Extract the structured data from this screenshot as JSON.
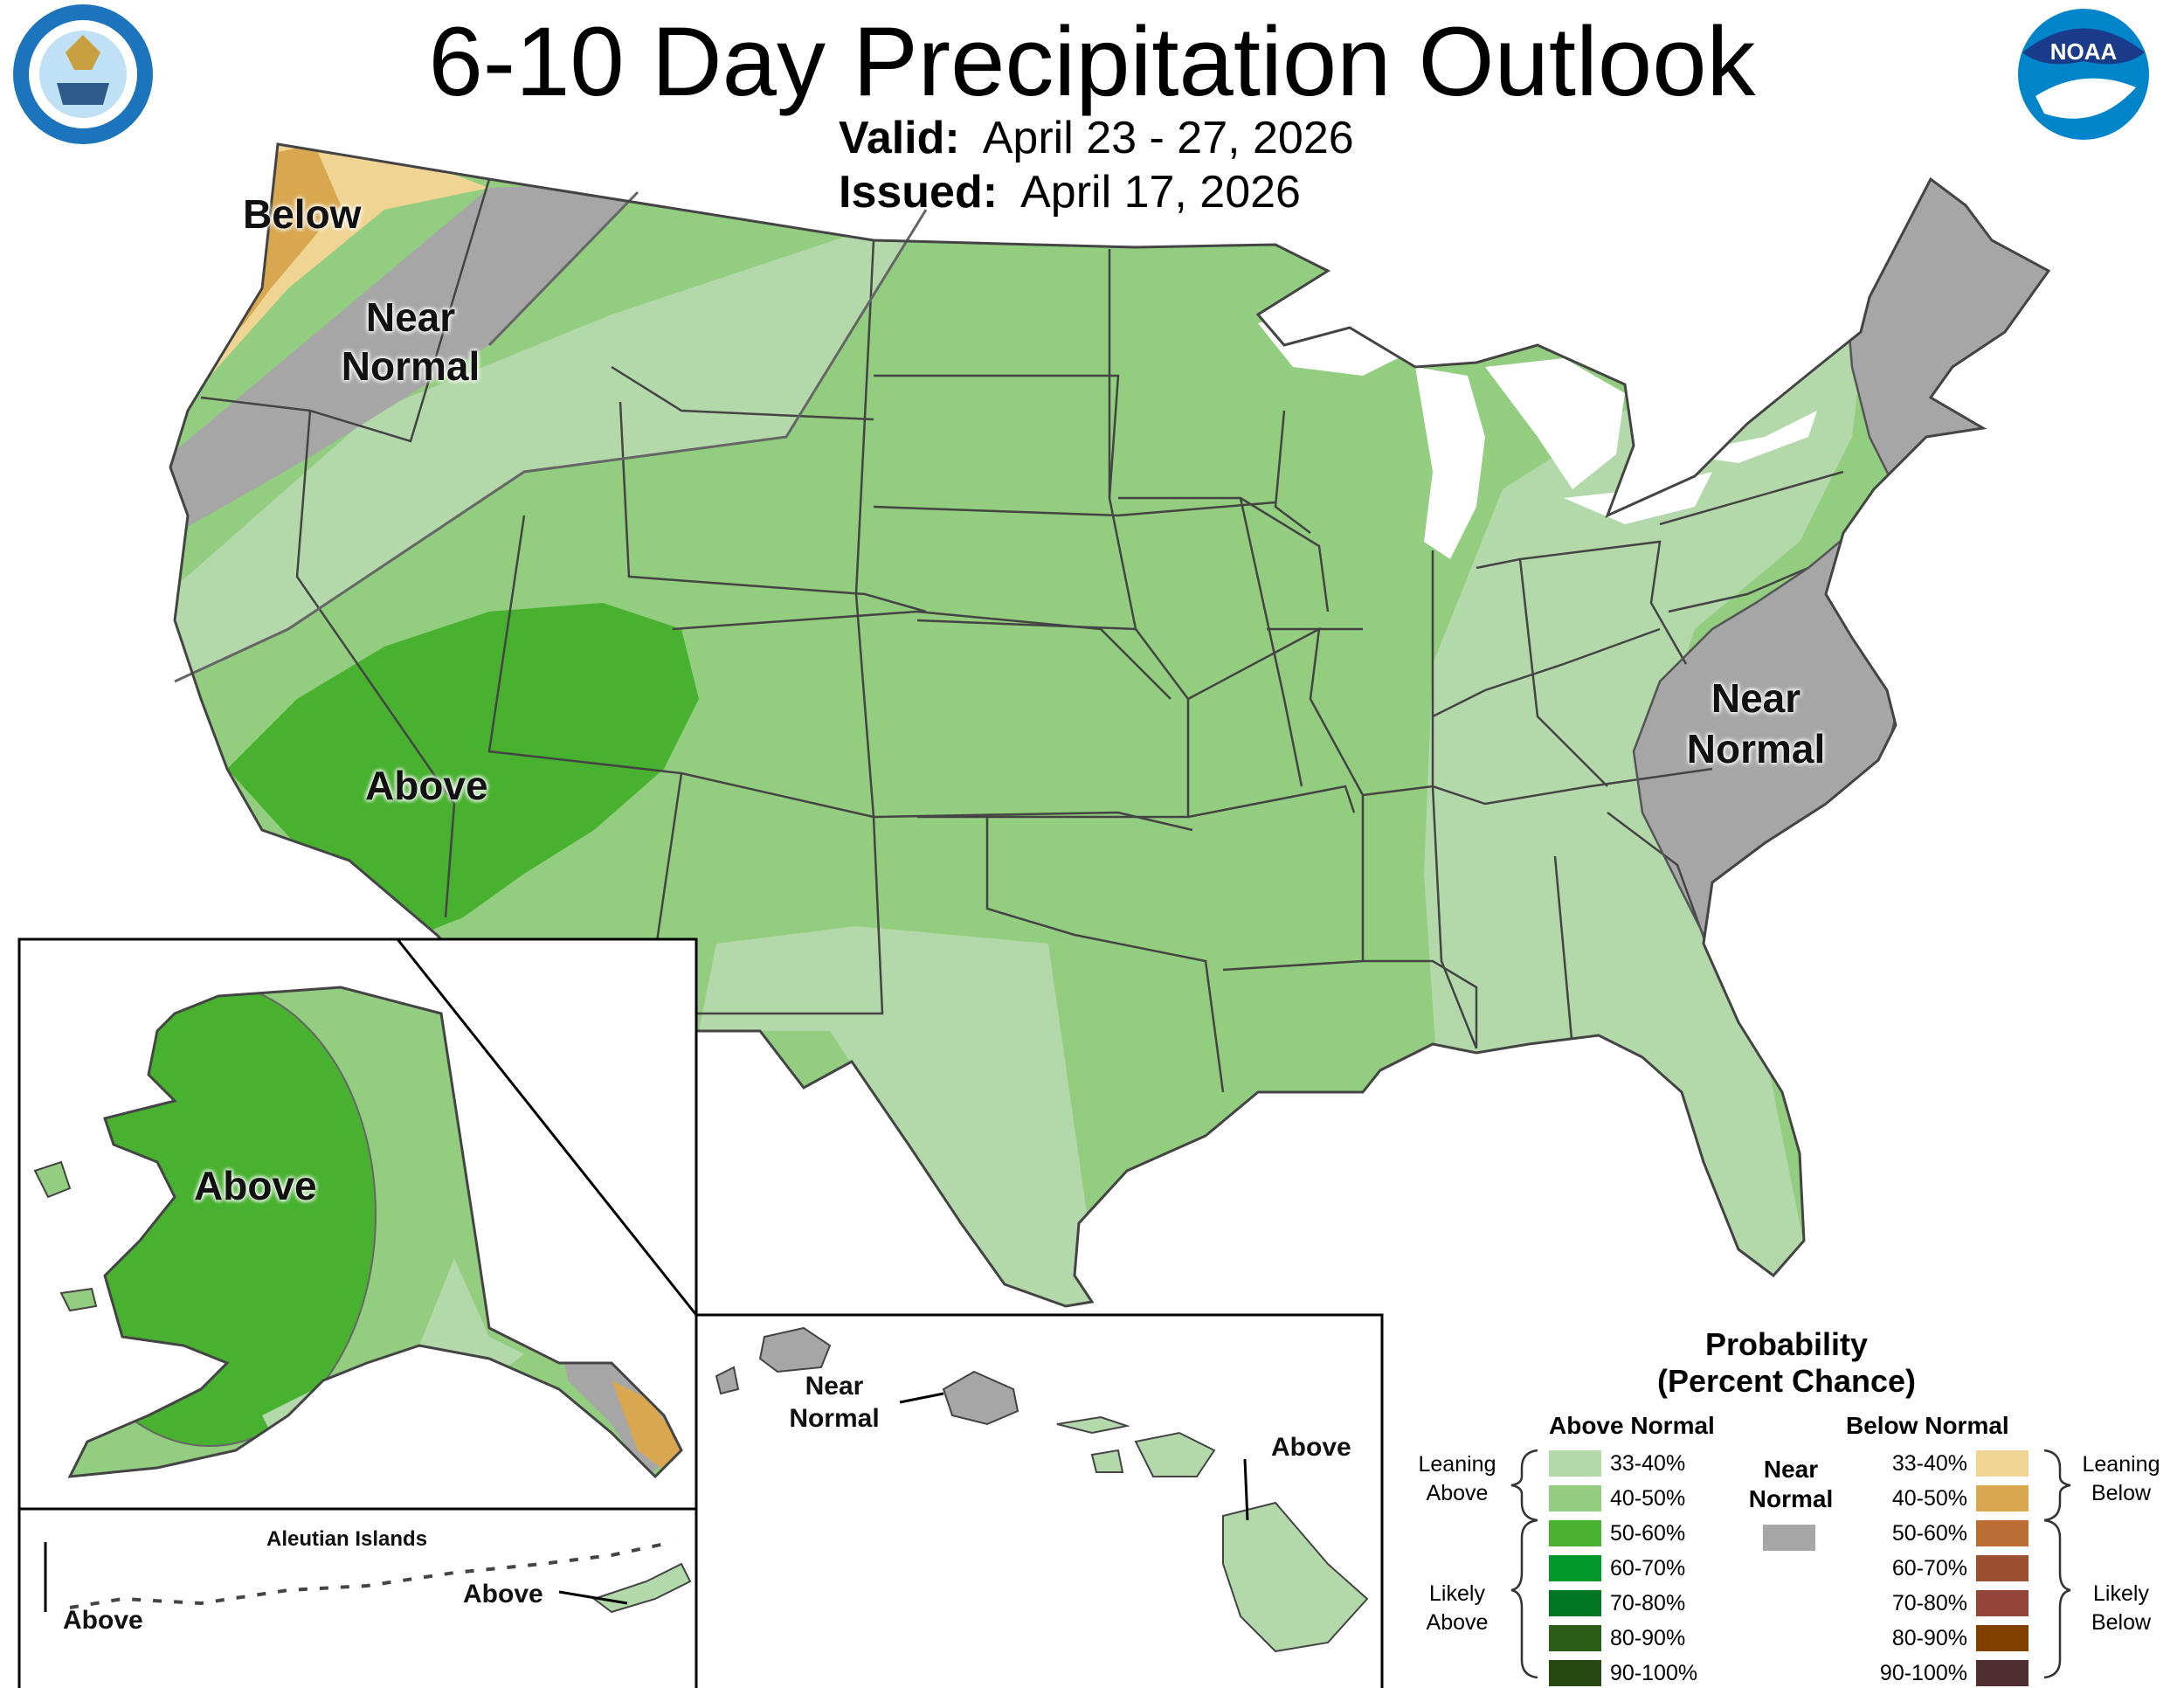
{
  "title": "6-10 Day Precipitation Outlook",
  "valid_label": "Valid:",
  "valid_value": "April 23 - 27, 2026",
  "issued_label": "Issued:",
  "issued_value": "April 17, 2026",
  "logos": {
    "left": "department-of-commerce-seal",
    "right": "noaa-logo"
  },
  "region_labels": {
    "below": "Below",
    "near_normal_nw": "Near\nNormal",
    "above_sw": "Above",
    "near_normal_east": "Near\nNormal",
    "above_alaska": "Above",
    "aleutian_title": "Aleutian Islands",
    "above_aleutian_west": "Above",
    "above_aleutian_east": "Above",
    "near_normal_hawaii": "Near\nNormal",
    "above_hawaii": "Above"
  },
  "legend": {
    "title_line1": "Probability",
    "title_line2": "(Percent Chance)",
    "above_header": "Above Normal",
    "below_header": "Below Normal",
    "near_label": "Near\nNormal",
    "near_color": "#a6a6a6",
    "leaning_above": "Leaning\nAbove",
    "likely_above": "Likely\nAbove",
    "leaning_below": "Leaning\nBelow",
    "likely_below": "Likely\nBelow",
    "above": [
      {
        "range": "33-40%",
        "color": "#b3d9ab"
      },
      {
        "range": "40-50%",
        "color": "#93cd7f"
      },
      {
        "range": "50-60%",
        "color": "#48b130"
      },
      {
        "range": "60-70%",
        "color": "#04982a"
      },
      {
        "range": "70-80%",
        "color": "#027722"
      },
      {
        "range": "80-90%",
        "color": "#2c5e1a"
      },
      {
        "range": "90-100%",
        "color": "#264a12"
      }
    ],
    "below": [
      {
        "range": "33-40%",
        "color": "#f0d493"
      },
      {
        "range": "40-50%",
        "color": "#d8a750"
      },
      {
        "range": "50-60%",
        "color": "#bb6d33"
      },
      {
        "range": "60-70%",
        "color": "#9b5031"
      },
      {
        "range": "70-80%",
        "color": "#934539"
      },
      {
        "range": "80-90%",
        "color": "#804000"
      },
      {
        "range": "90-100%",
        "color": "#4f2f2f"
      }
    ]
  }
}
